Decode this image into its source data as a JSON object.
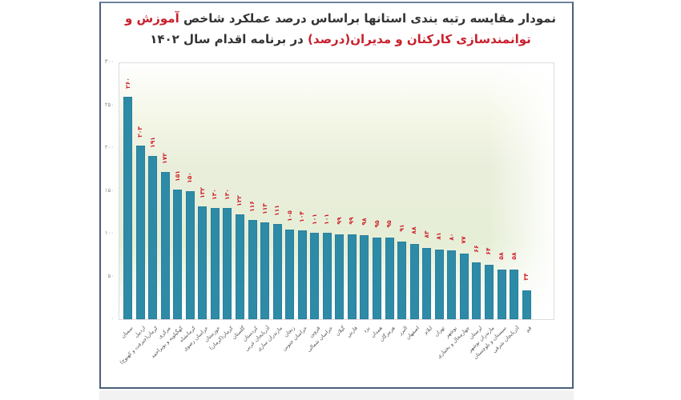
{
  "title": {
    "line1_part1": "نمودار مقایسه رتبه بندی استانها براساس درصد عملکرد شاخص ",
    "line1_highlight": "آموزش و",
    "line2_highlight": "توانمندسازی کارکنان و مدیران(درصد)",
    "line2_part2": " در برنامه اقدام سال ۱۴۰۲"
  },
  "colors": {
    "bar": "#2e8ba8",
    "value_label": "#d0202a",
    "title_highlight": "#c8202d",
    "title_text": "#333333",
    "frame_border": "#4a5f7a"
  },
  "y_axis": {
    "ticks": [
      {
        "value": 0,
        "label": "۰"
      },
      {
        "value": 50,
        "label": "۵۰"
      },
      {
        "value": 100,
        "label": "۱۰۰"
      },
      {
        "value": 150,
        "label": "۱۵۰"
      },
      {
        "value": 200,
        "label": "۲۰۰"
      },
      {
        "value": 250,
        "label": "۲۵۰"
      },
      {
        "value": 300,
        "label": "۳۰۰"
      }
    ]
  },
  "chart_data": {
    "type": "bar",
    "title": "نمودار مقایسه رتبه بندی استانها براساس درصد عملکرد شاخص آموزش و توانمندسازی کارکنان و مدیران(درصد) در برنامه اقدام سال ۱۴۰۲",
    "xlabel": "",
    "ylabel": "",
    "ylim": [
      0,
      300
    ],
    "grid": false,
    "legend": null,
    "categories": [
      "سمنان",
      "اردبیل",
      "کرمان(جیرفت و کهنوج)",
      "مرکزی",
      "کهگیلویه و بویراحمد",
      "کرمانشاه",
      "خراسان رضوی",
      "خوزستان",
      "کرمان(کرمان)",
      "گلستان",
      "کردستان",
      "آذربایجان غربی",
      "مازندران ساری",
      "زنجان",
      "خراسان جنوبی",
      "قزوین",
      "خراسان شمالی",
      "گیلان",
      "فارس",
      "یزد",
      "همدان",
      "هرمزگان",
      "البرز",
      "اصفهان",
      "ایلام",
      "تهران",
      "بوشهر",
      "چهارمحال و بختیاری",
      "لرستان",
      "مازندران نوشهر",
      "سیستان و بلوچستان",
      "آذربایجان شرقی",
      "قم"
    ],
    "values": [
      260,
      203,
      191,
      172,
      151,
      150,
      132,
      130,
      130,
      122,
      116,
      113,
      111,
      105,
      104,
      101,
      101,
      99,
      99,
      98,
      95,
      95,
      91,
      88,
      83,
      81,
      80,
      77,
      66,
      64,
      58,
      58,
      34
    ],
    "value_labels": [
      "۲۶۰",
      "۲۰۳",
      "۱۹۱",
      "۱۷۲",
      "۱۵۱",
      "۱۵۰",
      "۱۳۲",
      "۱۳۰",
      "۱۳۰",
      "۱۲۲",
      "۱۱۶",
      "۱۱۳",
      "۱۱۱",
      "۱۰۵",
      "۱۰۴",
      "۱۰۱",
      "۱۰۱",
      "۹۹",
      "۹۹",
      "۹۸",
      "۹۵",
      "۹۵",
      "۹۱",
      "۸۸",
      "۸۳",
      "۸۱",
      "۸۰",
      "۷۷",
      "۶۶",
      "۶۴",
      "۵۸",
      "۵۸",
      "۳۴"
    ]
  }
}
